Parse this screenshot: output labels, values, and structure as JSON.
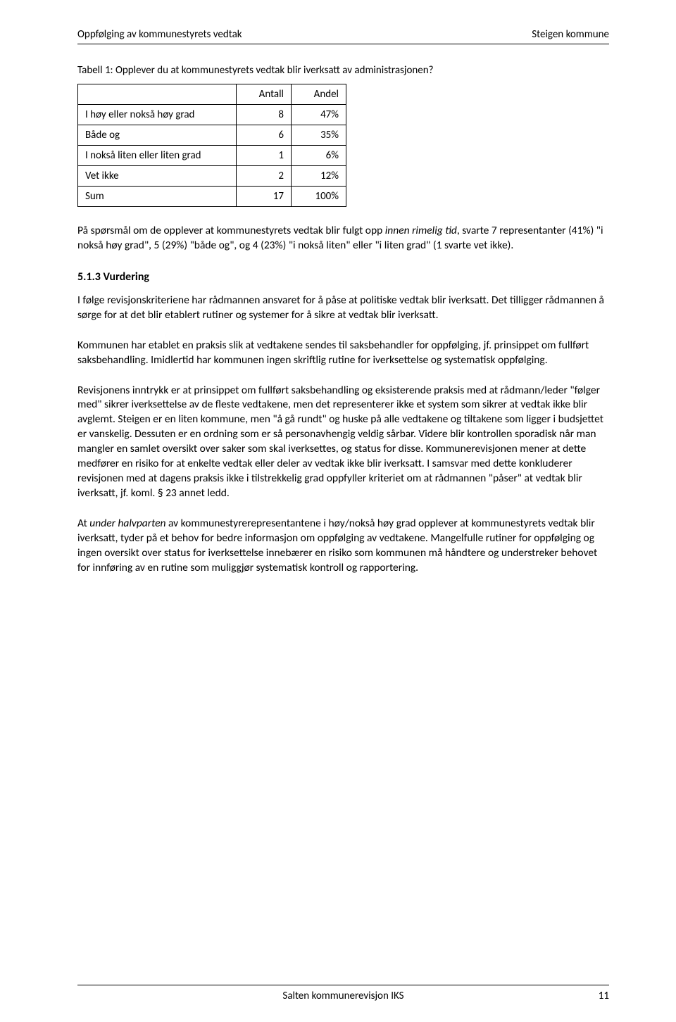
{
  "header": {
    "left": "Oppfølging av kommunestyrets vedtak",
    "right": "Steigen kommune"
  },
  "table": {
    "title": "Tabell 1: Opplever du at kommunestyrets vedtak blir iverksatt av administrasjonen?",
    "columns": [
      "",
      "Antall",
      "Andel"
    ],
    "rows": [
      {
        "label": "I høy eller nokså høy grad",
        "count": "8",
        "pct": "47%"
      },
      {
        "label": "Både og",
        "count": "6",
        "pct": "35%"
      },
      {
        "label": "I nokså liten eller liten grad",
        "count": "1",
        "pct": "6%"
      },
      {
        "label": "Vet ikke",
        "count": "2",
        "pct": "12%"
      },
      {
        "label": "Sum",
        "count": "17",
        "pct": "100%"
      }
    ]
  },
  "para_intro": {
    "pre": "På spørsmål om de opplever at kommunestyrets vedtak blir fulgt opp ",
    "italic": "innen rimelig tid",
    "post": ", svarte 7 representanter (41%) \"i nokså høy grad\", 5 (29%) \"både og\", og 4 (23%) \"i nokså liten\" eller \"i liten grad\" (1 svarte vet ikke)."
  },
  "subheading": "5.1.3 Vurdering",
  "paragraphs": {
    "p1": "I følge revisjonskriteriene har rådmannen ansvaret for å påse at politiske vedtak blir iverksatt. Det tilligger rådmannen å sørge for at det blir etablert rutiner og systemer for å sikre at vedtak blir iverksatt.",
    "p2": "Kommunen har etablet en praksis slik at vedtakene sendes til saksbehandler for oppfølging, jf. prinsippet om fullført saksbehandling. Imidlertid har kommunen ingen skriftlig rutine for iverksettelse og systematisk oppfølging.",
    "p3": "Revisjonens inntrykk er at prinsippet om fullført saksbehandling og eksisterende praksis med at rådmann/leder \"følger med\" sikrer iverksettelse av de fleste vedtakene, men det representerer ikke et system som sikrer at vedtak ikke blir avglemt. Steigen er en liten kommune, men \"å gå rundt\" og huske på alle vedtakene og tiltakene som ligger i budsjettet er vanskelig. Dessuten er en ordning som er så personavhengig veldig sårbar. Videre blir kontrollen sporadisk når man mangler en samlet oversikt over saker som skal iverksettes, og status for disse. Kommunerevisjonen mener at dette medfører en risiko for at enkelte vedtak eller deler av vedtak ikke blir iverksatt. I samsvar med dette konkluderer revisjonen med at dagens praksis ikke i tilstrekkelig grad oppfyller kriteriet om at rådmannen \"påser\" at vedtak blir iverksatt, jf. koml. § 23 annet ledd."
  },
  "para_last": {
    "pre": "At ",
    "italic": "under halvparten",
    "post": " av kommunestyrerepresentantene i høy/nokså høy grad opplever at kommunestyrets vedtak blir iverksatt, tyder på et behov for bedre informasjon om oppfølging av vedtakene. Mangelfulle rutiner for oppfølging og ingen oversikt over status for iverksettelse innebærer en risiko som kommunen må håndtere og understreker behovet for innføring av en rutine som muliggjør systematisk kontroll og rapportering."
  },
  "footer": {
    "center": "Salten kommunerevisjon IKS",
    "page": "11"
  }
}
